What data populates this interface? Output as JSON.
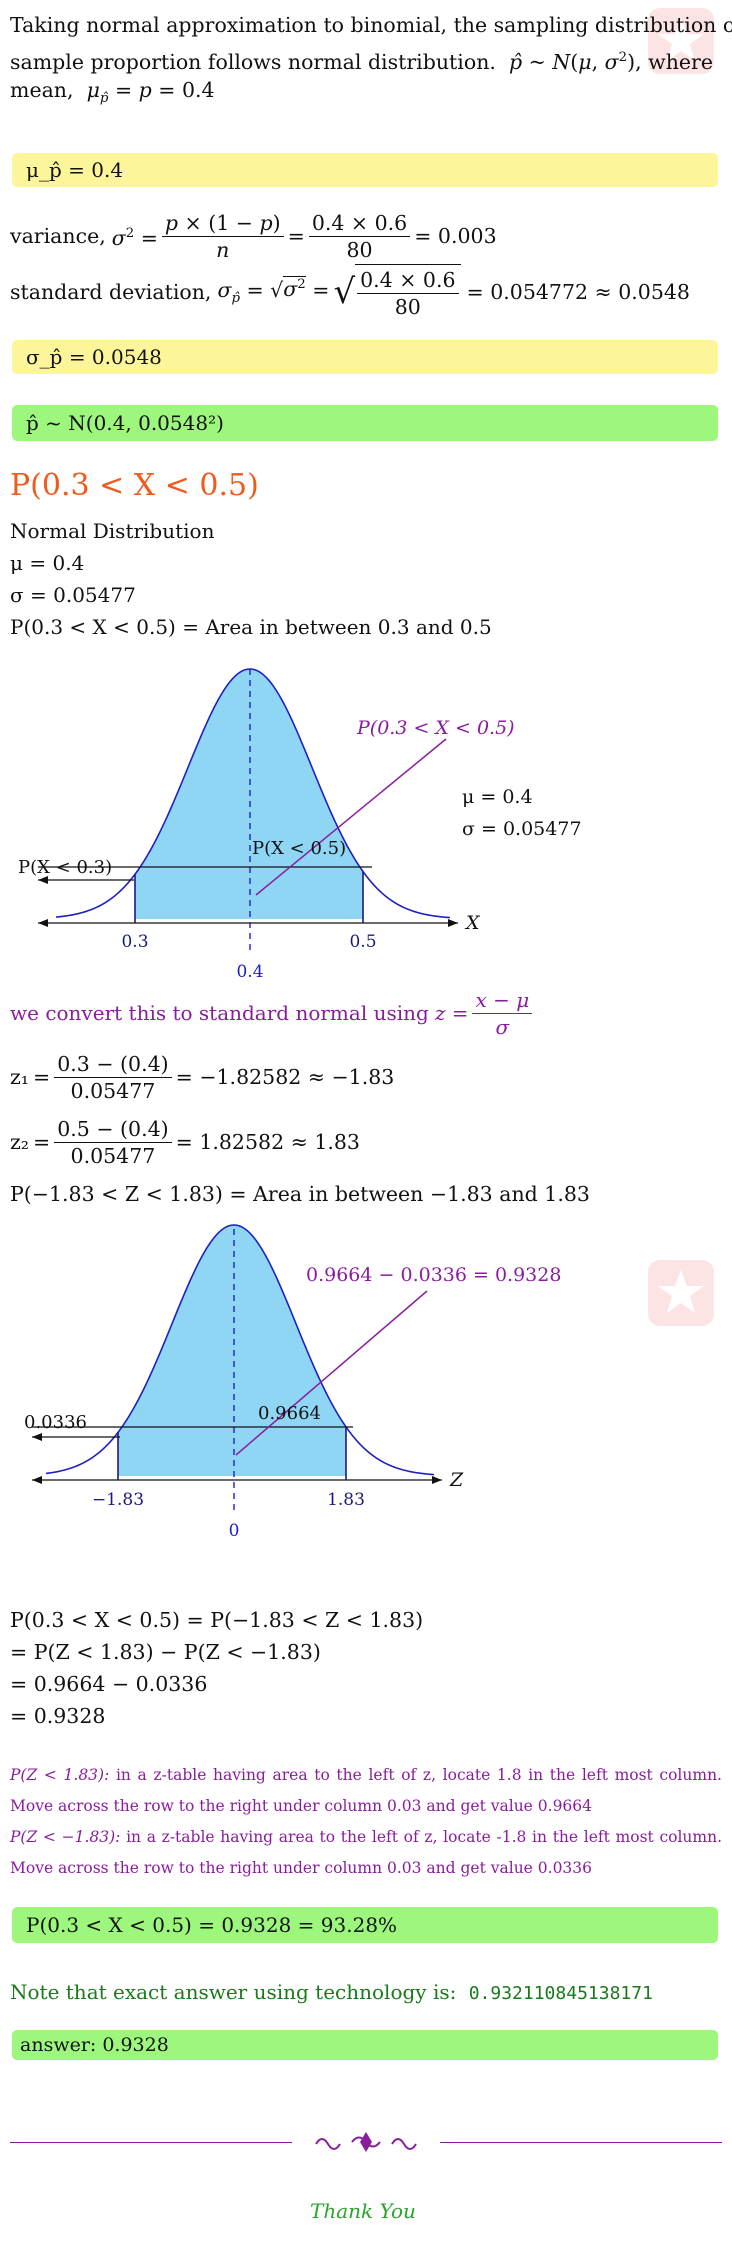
{
  "intro": {
    "line1": "Taking normal approximation to binomial, the sampling distribution of",
    "line2a": "sample proportion follows normal distribution.",
    "line2b": "where",
    "line3a": "mean,"
  },
  "box_mean": "μ_p̂ = 0.4",
  "variance": {
    "label": "variance,",
    "result": "= 0.003"
  },
  "stddev": {
    "label": "standard deviation,",
    "result": "= 0.054772 ≈ 0.0548"
  },
  "box_sigma": "σ_p̂ = 0.0548",
  "box_dist": "p̂ ~ N(0.4, 0.0548²)",
  "heading": "P(0.3 < X < 0.5)",
  "normal": {
    "title": "Normal Distribution",
    "mu": "μ = 0.4",
    "sigma": "σ = 0.05477",
    "area": "P(0.3 < X < 0.5) = Area in between 0.3 and 0.5"
  },
  "chart1": {
    "annotation": "P(0.3 < X < 0.5)",
    "mu_label": "μ = 0.4",
    "sigma_label": "σ = 0.05477",
    "left_label": "P(X < 0.3)",
    "mid_label": "P(X < 0.5)",
    "tick_left": "0.3",
    "tick_right": "0.5",
    "tick_center": "0.4",
    "axis": "X"
  },
  "convert": "we convert this to standard normal using",
  "z1": {
    "name": "z₁",
    "num": "0.3 − (0.4)",
    "den": "0.05477",
    "result": "= −1.82582 ≈ −1.83"
  },
  "z2": {
    "name": "z₂",
    "num": "0.5 − (0.4)",
    "den": "0.05477",
    "result": "= 1.82582 ≈ 1.83"
  },
  "area_z": "P(−1.83 < Z < 1.83) = Area in between −1.83 and 1.83",
  "chart2": {
    "annotation": "0.9664 − 0.0336 = 0.9328",
    "left_label": "0.0336",
    "mid_label": "0.9664",
    "tick_left": "−1.83",
    "tick_right": "1.83",
    "tick_center": "0",
    "axis": "Z"
  },
  "calc": [
    "P(0.3 < X < 0.5) = P(−1.83 < Z < 1.83)",
    "= P(Z < 1.83) − P(Z < −1.83)",
    "= 0.9664 − 0.0336",
    "= 0.9328"
  ],
  "notes": {
    "n1_math": "P(Z < 1.83):",
    "n1_text": "in a z-table having area to the left of z, locate 1.8 in the left most column. Move across the row to the right under column 0.03 and get value 0.9664",
    "n2_math": "P(Z < −1.83):",
    "n2_text": "in a z-table having area to the left of z, locate -1.8 in the left most column. Move across the row to the right under column 0.03 and get value 0.0336"
  },
  "box_result": "P(0.3 < X < 0.5) = 0.9328 = 93.28%",
  "exact": {
    "text": "Note that exact answer using technology is:",
    "value": "0.932110845138171"
  },
  "answer": "answer:  0.9328",
  "thanks": "Thank You",
  "colors": {
    "yellow": "#fdf59a",
    "green": "#9cf77c",
    "curve_fill": "#8fd6f5",
    "purple": "#8a1c9e",
    "orange": "#f05a1c"
  }
}
